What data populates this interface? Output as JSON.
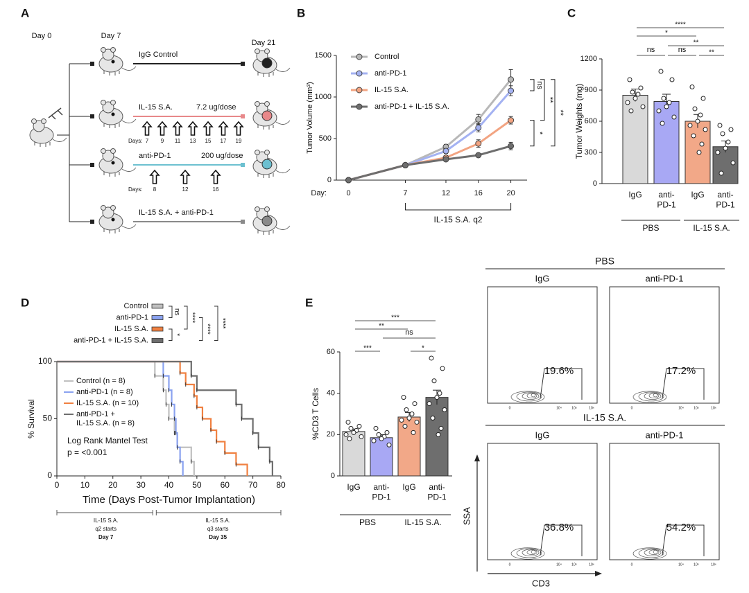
{
  "panels": [
    "A",
    "B",
    "C",
    "D",
    "E"
  ],
  "schematic": {
    "day0": "Day 0",
    "day7": "Day 7",
    "day21": "Day 21",
    "rows": [
      {
        "label": "IgG Control",
        "color": "#222222"
      },
      {
        "label": "IL-15 S.A.",
        "dose": "7.2 ug/dose",
        "days_label": "Days:",
        "days": [
          7,
          9,
          11,
          13,
          15,
          17,
          19
        ],
        "color": "#e8888a"
      },
      {
        "label": "anti-PD-1",
        "dose": "200 ug/dose",
        "days_label": "Days:",
        "days": [
          8,
          12,
          16
        ],
        "color": "#6cc0d0"
      },
      {
        "label": "IL-15 S.A. + anti-PD-1",
        "color": "#8a8a8a"
      }
    ]
  },
  "chart_data": [
    {
      "type": "line",
      "xlabel": "Day:",
      "ylabel": "Tumor Volume (mm³)",
      "x": [
        0,
        7,
        12,
        16,
        20
      ],
      "xticks": [
        0,
        7,
        12,
        16,
        20
      ],
      "xlim": [
        -1.5,
        22
      ],
      "ylim": [
        0,
        1500
      ],
      "yticks": [
        0,
        500,
        1000,
        1500
      ],
      "legend": "upper left",
      "series": [
        {
          "name": "Control",
          "color": "#b8b8b8",
          "values": [
            0,
            180,
            400,
            730,
            1210
          ],
          "errors": [
            0,
            10,
            30,
            60,
            120
          ]
        },
        {
          "name": "anti-PD-1",
          "color": "#a4b2f2",
          "values": [
            0,
            180,
            350,
            630,
            1075
          ],
          "errors": [
            0,
            10,
            30,
            50,
            60
          ]
        },
        {
          "name": "IL-15 S.A.",
          "color": "#f2a482",
          "values": [
            0,
            180,
            270,
            440,
            720
          ],
          "errors": [
            0,
            10,
            25,
            45,
            45
          ]
        },
        {
          "name": "anti-PD-1 + IL-15 S.A.",
          "color": "#6e6e6e",
          "values": [
            0,
            180,
            250,
            300,
            410
          ],
          "errors": [
            0,
            10,
            20,
            20,
            45
          ]
        }
      ],
      "annotations": [
        "ns",
        "**",
        "**",
        "*"
      ],
      "bracket_label": "IL-15 S.A. q2"
    },
    {
      "type": "bar",
      "ylabel": "Tumor Weights (mg)",
      "categories": [
        "IgG",
        "anti-PD-1",
        "IgG",
        "anti-PD-1"
      ],
      "groups": [
        "PBS",
        "IL-15 S.A."
      ],
      "colors": [
        "#d9d9d9",
        "#a8a8f4",
        "#f2a888",
        "#6e6e6e"
      ],
      "values": [
        850,
        790,
        600,
        355
      ],
      "errors": [
        60,
        70,
        65,
        55
      ],
      "points": [
        [
          1000,
          920,
          880,
          860,
          820,
          780,
          740,
          700
        ],
        [
          1080,
          1000,
          820,
          780,
          740,
          700,
          640,
          580
        ],
        [
          930,
          820,
          720,
          660,
          600,
          560,
          520,
          460,
          380,
          300
        ],
        [
          560,
          520,
          480,
          400,
          340,
          300,
          200,
          100
        ]
      ],
      "ylim": [
        0,
        1200
      ],
      "yticks": [
        0,
        300,
        600,
        900,
        1200
      ],
      "annotations": [
        "****",
        "*",
        "**",
        "ns",
        "ns",
        "**"
      ]
    },
    {
      "type": "survival",
      "xlabel": "Time (Days Post-Tumor Implantation)",
      "ylabel": "% Survival",
      "xlim": [
        0,
        80
      ],
      "xticks": [
        0,
        10,
        20,
        30,
        40,
        50,
        60,
        70,
        80
      ],
      "ylim": [
        0,
        100
      ],
      "yticks": [
        0,
        50,
        100
      ],
      "series": [
        {
          "name": "Control",
          "legend_label": "Control (n = 8)",
          "color": "#c0c0c0",
          "x": [
            0,
            35,
            38,
            39,
            40,
            42,
            43,
            48,
            49
          ],
          "values": [
            100,
            87.5,
            75,
            62.5,
            50,
            37.5,
            25,
            12.5,
            0
          ]
        },
        {
          "name": "anti-PD-1",
          "legend_label": "anti-PD-1 (n = 8)",
          "color": "#8aa2f0",
          "x": [
            0,
            38,
            40,
            41,
            42,
            42.5,
            43,
            44,
            45
          ],
          "values": [
            100,
            87.5,
            75,
            62.5,
            50,
            37.5,
            25,
            12.5,
            0
          ]
        },
        {
          "name": "IL-15 S.A.",
          "legend_label": "IL-15 S.A. (n = 10)",
          "color": "#f08040",
          "x": [
            0,
            44,
            46,
            49,
            50,
            52,
            55,
            57,
            60,
            64,
            68
          ],
          "values": [
            100,
            90,
            80,
            70,
            60,
            50,
            40,
            30,
            20,
            10,
            0
          ]
        },
        {
          "name": "anti-PD-1 + IL-15 S.A.",
          "legend_label": "anti-PD-1 + IL-15 S.A. (n = 8)",
          "color": "#6e6e6e",
          "x": [
            0,
            48,
            50,
            64,
            66,
            70,
            72,
            76,
            77
          ],
          "values": [
            100,
            87.5,
            75,
            62.5,
            50,
            37.5,
            25,
            12.5,
            0
          ]
        }
      ],
      "annotations": [
        "ns",
        "****",
        "****",
        "*",
        "****"
      ],
      "test_label": "Log Rank Mantel Test",
      "p_label": "p = <0.001",
      "timeline": [
        {
          "lines": [
            "IL-15 S.A.",
            "q2 starts",
            "Day 7"
          ]
        },
        {
          "lines": [
            "IL-15 S.A.",
            "q3 starts",
            "Day 35"
          ]
        }
      ]
    },
    {
      "type": "bar",
      "ylabel": "%CD3 T Cells",
      "categories": [
        "IgG",
        "anti-PD-1",
        "IgG",
        "anti-PD-1"
      ],
      "groups": [
        "PBS",
        "IL-15 S.A."
      ],
      "colors": [
        "#d9d9d9",
        "#a8a8f4",
        "#f2a888",
        "#6e6e6e"
      ],
      "values": [
        21.5,
        18.5,
        28.5,
        38
      ],
      "errors": [
        1.2,
        1.5,
        2.2,
        3.5
      ],
      "points": [
        [
          26,
          24,
          23,
          22,
          21,
          20,
          19,
          18
        ],
        [
          23,
          21,
          20,
          19,
          18,
          17,
          15
        ],
        [
          38,
          35,
          32,
          30,
          28,
          27,
          26,
          24,
          21
        ],
        [
          57,
          52,
          46,
          40,
          38,
          35,
          32,
          28,
          23,
          20
        ]
      ],
      "ylim": [
        0,
        60
      ],
      "yticks": [
        0,
        20,
        40,
        60
      ],
      "annotations": [
        "***",
        "**",
        "ns",
        "***",
        "*"
      ]
    }
  ],
  "flow": {
    "top_group": "PBS",
    "bottom_group": "IL-15 S.A.",
    "plots": [
      {
        "label": "IgG",
        "percent": "19.6%"
      },
      {
        "label": "anti-PD-1",
        "percent": "17.2%"
      },
      {
        "label": "IgG",
        "percent": "36.8%"
      },
      {
        "label": "anti-PD-1",
        "percent": "54.2%"
      }
    ],
    "xticks": [
      "0",
      "10⁴",
      "10⁵",
      "10⁶"
    ],
    "ylabel": "SSA",
    "xlabel": "CD3"
  }
}
